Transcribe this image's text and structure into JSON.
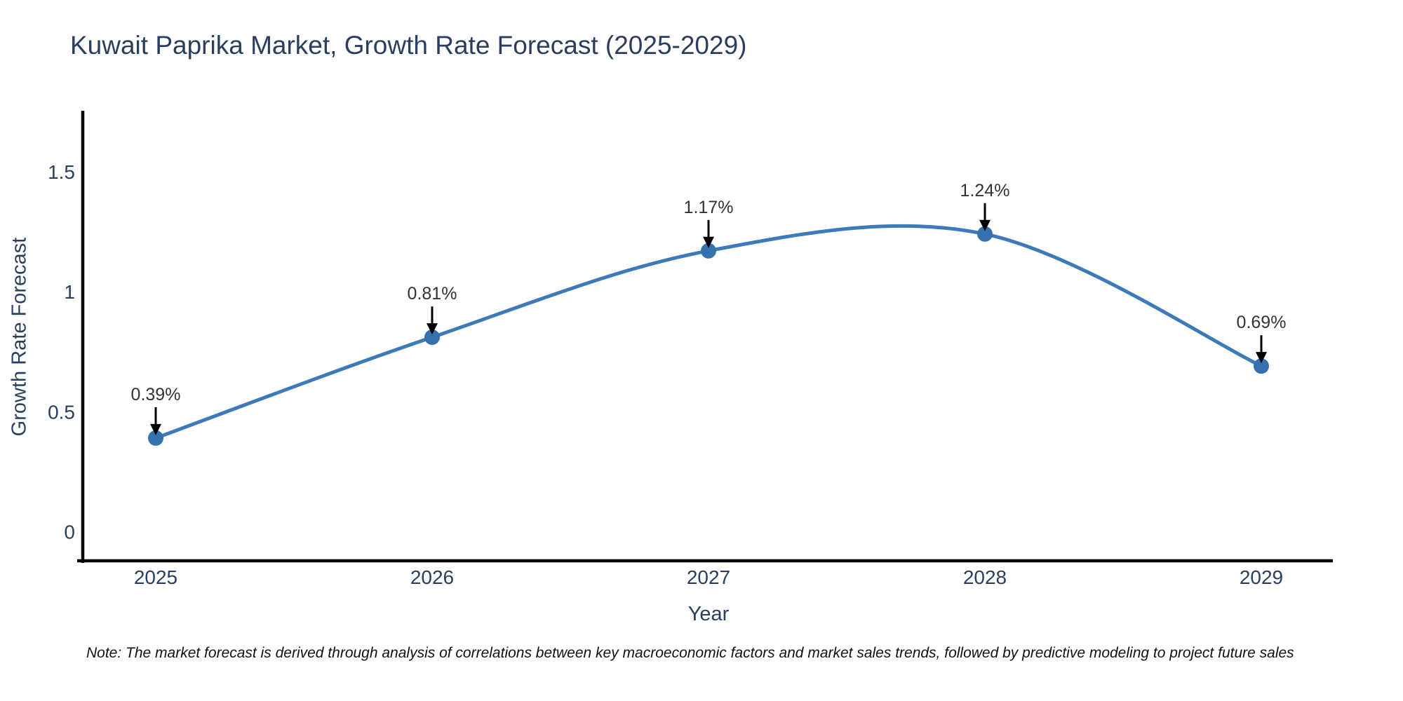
{
  "title": "Kuwait Paprika Market, Growth Rate Forecast (2025-2029)",
  "note": "Note: The market forecast is derived through analysis of correlations between key macroeconomic factors and market sales trends, followed by predictive modeling to project future sales",
  "chart_data": {
    "type": "line",
    "title": "Kuwait Paprika Market, Growth Rate Forecast (2025-2029)",
    "xlabel": "Year",
    "ylabel": "Growth Rate Forecast",
    "x": [
      2025,
      2026,
      2027,
      2028,
      2029
    ],
    "values": [
      0.39,
      0.81,
      1.17,
      1.24,
      0.69
    ],
    "point_labels": [
      "0.39%",
      "0.81%",
      "1.17%",
      "1.24%",
      "0.69%"
    ],
    "xtick_labels": [
      "2025",
      "2026",
      "2027",
      "2028",
      "2029"
    ],
    "yticks": [
      0,
      0.5,
      1,
      1.5
    ],
    "ytick_labels": [
      "0",
      "0.5",
      "1",
      "1.5"
    ],
    "ylim": [
      -0.12,
      1.76
    ],
    "xlim": [
      2024.73,
      2029.26
    ],
    "grid": false,
    "legend": "none",
    "line_style": "smooth-spline",
    "line_color": "#3d7bb8",
    "marker_color": "#3671ae",
    "annotation_arrow_color": "#000000",
    "annotation_text_color": "#333333",
    "axis_spine_color": "#000000",
    "axis_text_color": "#2a3f5f"
  }
}
